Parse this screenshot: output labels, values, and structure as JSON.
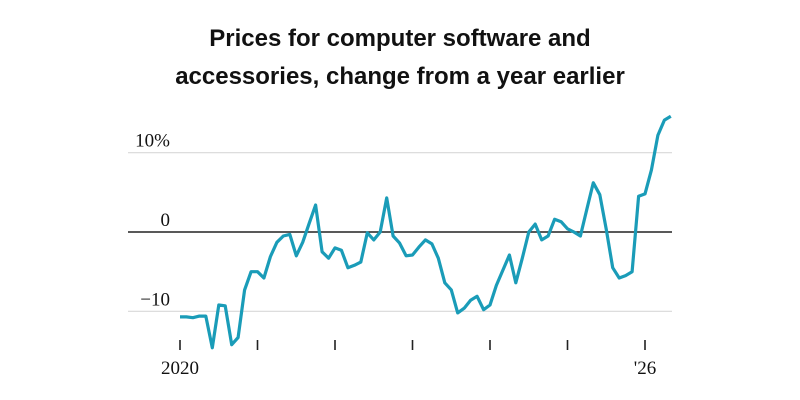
{
  "chart_data": {
    "type": "line",
    "title": [
      "Prices for computer software and",
      "accessories, change from a year earlier"
    ],
    "x": [
      2020,
      2020.083,
      2020.167,
      2020.25,
      2020.333,
      2020.417,
      2020.5,
      2020.583,
      2020.667,
      2020.75,
      2020.833,
      2020.917,
      2021,
      2021.083,
      2021.167,
      2021.25,
      2021.333,
      2021.417,
      2021.5,
      2021.583,
      2021.667,
      2021.75,
      2021.833,
      2021.917,
      2022,
      2022.083,
      2022.167,
      2022.25,
      2022.333,
      2022.417,
      2022.5,
      2022.583,
      2022.667,
      2022.75,
      2022.833,
      2022.917,
      2023,
      2023.083,
      2023.167,
      2023.25,
      2023.333,
      2023.417,
      2023.5,
      2023.583,
      2023.667,
      2023.75,
      2023.833,
      2023.917,
      2024,
      2024.083,
      2024.167,
      2024.25,
      2024.333,
      2024.417,
      2024.5,
      2024.583,
      2024.667,
      2024.75,
      2024.833,
      2024.917,
      2025,
      2025.083,
      2025.167,
      2025.25,
      2025.333,
      2025.417,
      2025.5,
      2025.583,
      2025.667,
      2025.75,
      2025.833,
      2025.917,
      2026,
      2026.083,
      2026.167,
      2026.25,
      2026.333
    ],
    "series": [
      {
        "color": "#1a9cb8",
        "values": [
          -10.7,
          -10.7,
          -10.8,
          -10.6,
          -10.6,
          -14.6,
          -9.2,
          -9.3,
          -14.2,
          -13.3,
          -7.3,
          -5.0,
          -5.0,
          -5.8,
          -3.1,
          -1.3,
          -0.5,
          -0.3,
          -3.0,
          -1.3,
          1.1,
          3.4,
          -2.5,
          -3.3,
          -2.0,
          -2.3,
          -4.5,
          -4.2,
          -3.8,
          -0.1,
          -1.0,
          0,
          4.3,
          -0.5,
          -1.4,
          -3.0,
          -2.9,
          -1.9,
          -1.0,
          -1.5,
          -3.3,
          -6.4,
          -7.3,
          -10.2,
          -9.6,
          -8.6,
          -8.1,
          -9.8,
          -9.2,
          -6.7,
          -4.8,
          -2.9,
          -6.4,
          -3.3,
          0,
          1.0,
          -1.0,
          -0.5,
          1.6,
          1.3,
          0.4,
          0,
          -0.5,
          2.9,
          6.2,
          4.7,
          0.3,
          -4.5,
          -5.8,
          -5.5,
          -5.0,
          4.5,
          4.8,
          7.8,
          12.2,
          14.1,
          14.6
        ]
      }
    ],
    "xlim": [
      2020,
      2026.4
    ],
    "xticks": [
      2020,
      {
        "value": 2026,
        "label": "'26"
      }
    ],
    "xminor_ticks": [
      2021,
      2022,
      2023,
      2024,
      2025
    ],
    "ylim": [
      -15,
      15
    ],
    "yticks": [
      {
        "value": 10,
        "label": "10%"
      },
      0,
      {
        "value": -10,
        "label": "−10"
      }
    ],
    "grid": true
  }
}
